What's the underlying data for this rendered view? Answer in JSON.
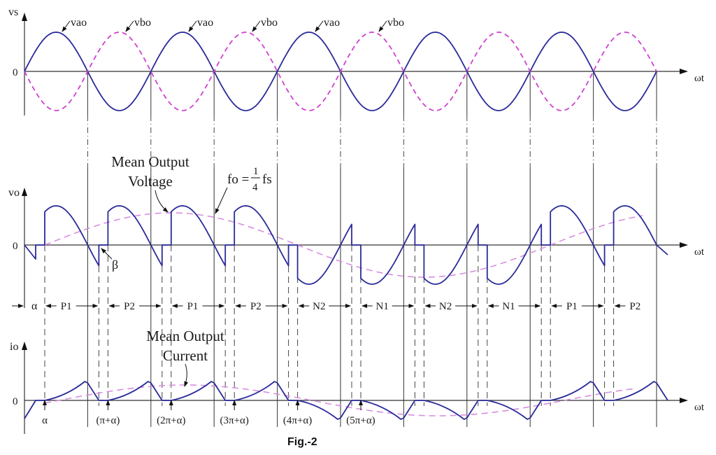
{
  "figure": {
    "caption": "Fig.-2",
    "colors": {
      "solid_wave": "#2a2a9a",
      "dashed_wave": "#d040d0",
      "mean_curve": "#d78fe0",
      "axis": "#333333",
      "text": "#1a1a1a"
    }
  },
  "panels": {
    "supply": {
      "y_label": "vs",
      "zero_label": "0",
      "x_label": "ωt",
      "wave_a_label": "vao",
      "wave_b_label": "vbo"
    },
    "output_voltage": {
      "y_label": "vo",
      "zero_label": "0",
      "x_label": "ωt",
      "mean_label_line1": "Mean Output",
      "mean_label_line2": "Voltage",
      "freq_label_left": "fo =",
      "freq_num": "1",
      "freq_den": "4",
      "freq_label_right": "fs",
      "beta_label": "β"
    },
    "intervals": {
      "alpha_label": "α",
      "labels": [
        "P1",
        "P2",
        "P1",
        "P2",
        "N2",
        "N1",
        "N2",
        "N1",
        "P1",
        "P2"
      ]
    },
    "output_current": {
      "y_label": "io",
      "zero_label": "0",
      "x_label": "ωt",
      "mean_label_line1": "Mean Output",
      "mean_label_line2": "Current",
      "angle_labels": [
        "α",
        "(π+α)",
        "(2π+α)",
        "(3π+α)",
        "(4π+α)",
        "(5π+α)"
      ]
    }
  },
  "chart_data": {
    "type": "line",
    "title": "Fig.-2",
    "description": "Single-phase cycloconverter waveforms: supply voltages, output voltage and output current with fo = fs/4",
    "panels": [
      {
        "name": "supply",
        "ylabel": "vs",
        "xlabel": "ωt",
        "series": [
          {
            "name": "vao",
            "style": "solid",
            "shape": "sine",
            "half_cycles": 10,
            "peak": 1
          },
          {
            "name": "vbo",
            "style": "dashed",
            "shape": "-sine",
            "half_cycles": 10,
            "peak": 1
          }
        ]
      },
      {
        "name": "output_voltage",
        "ylabel": "vo",
        "xlabel": "ωt",
        "annotations": [
          "Mean Output Voltage",
          "fo = 1/4 fs",
          "β"
        ],
        "interval_sequence": [
          "P1",
          "P2",
          "P1",
          "P2",
          "N2",
          "N1",
          "N2",
          "N1",
          "P1",
          "P2"
        ],
        "series": [
          {
            "name": "vo",
            "style": "solid",
            "shape": "phase-controlled rectified segments"
          },
          {
            "name": "mean vo",
            "style": "dashed",
            "shape": "sine at fs/4"
          }
        ]
      },
      {
        "name": "output_current",
        "ylabel": "io",
        "xlabel": "ωt",
        "annotations": [
          "Mean Output Current"
        ],
        "x_ticks": [
          "α",
          "(π+α)",
          "(2π+α)",
          "(3π+α)",
          "(4π+α)",
          "(5π+α)"
        ],
        "series": [
          {
            "name": "io",
            "style": "solid"
          },
          {
            "name": "mean io",
            "style": "dashed"
          }
        ]
      }
    ]
  }
}
